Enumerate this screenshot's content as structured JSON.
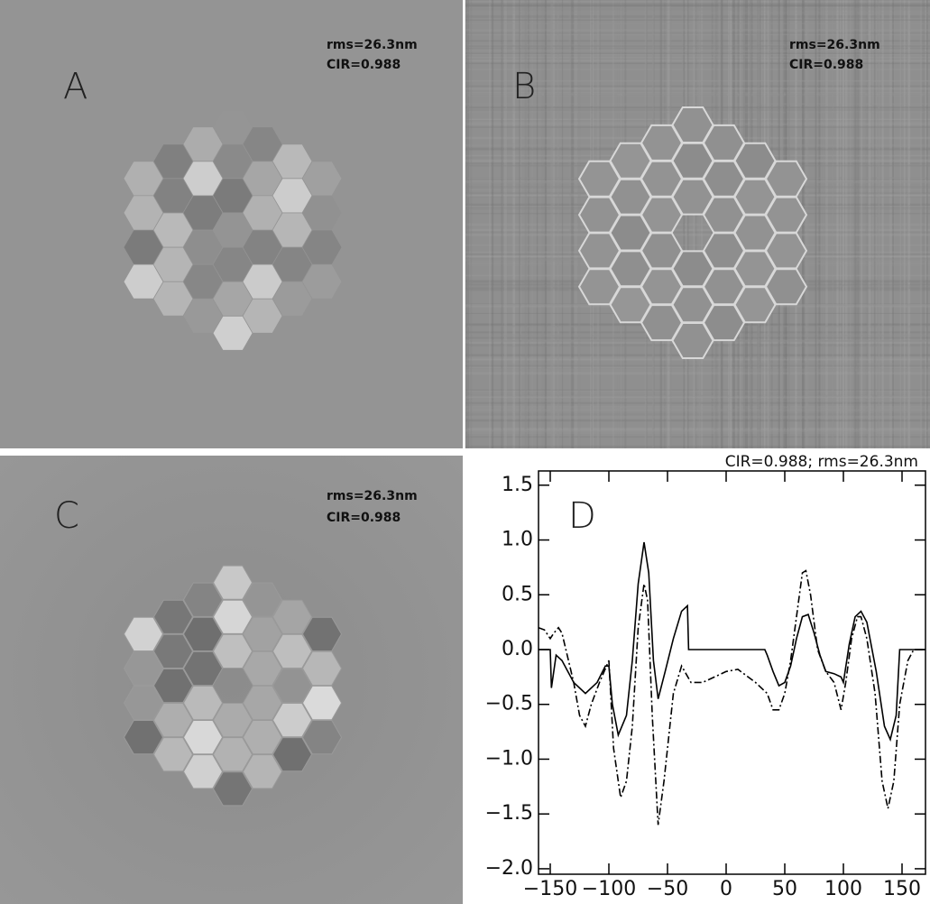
{
  "panels": [
    {
      "label": "A",
      "rms": "rms=26.3nm",
      "cir": "CIR=0.988"
    },
    {
      "label": "B",
      "rms": "rms=26.3nm",
      "cir": "CIR=0.988"
    },
    {
      "label": "C",
      "rms": "rms=26.3nm",
      "cir": "CIR=0.988"
    }
  ],
  "chart_data": {
    "type": "line",
    "title": "CIR=0.988; rms=26.3nm",
    "annotation": "D",
    "xlim": [
      -160,
      170
    ],
    "ylim": [
      -2.05,
      1.63
    ],
    "xticks": [
      {
        "value": -150,
        "label": "−150"
      },
      {
        "value": -100,
        "label": "−100"
      },
      {
        "value": -50,
        "label": "−50"
      },
      0,
      50,
      100,
      150
    ],
    "yticks": [
      1.5,
      {
        "value": 1.0,
        "label": "1.0"
      },
      0.5,
      {
        "value": 0.0,
        "label": "0.0"
      },
      {
        "value": -0.5,
        "label": "−0.5"
      },
      {
        "value": -1.0,
        "label": "−1.0"
      },
      {
        "value": -1.5,
        "label": "−1.5"
      },
      {
        "value": -2.0,
        "label": "−2.0"
      }
    ],
    "series": [
      {
        "color": "#000000",
        "dash": "solid",
        "x": [
          -160,
          -150,
          -149,
          -145,
          -140,
          -130,
          -120,
          -110,
          -103,
          -100,
          -97,
          -92,
          -85,
          -80,
          -75,
          -70,
          -66,
          -62,
          -58,
          -52,
          -45,
          -38,
          -33,
          -32,
          0,
          33,
          35,
          40,
          45,
          50,
          55,
          60,
          65,
          70,
          75,
          80,
          85,
          92,
          98,
          100,
          105,
          110,
          115,
          120,
          128,
          135,
          140,
          145,
          148,
          170
        ],
        "values": [
          0,
          0,
          -0.35,
          -0.05,
          -0.1,
          -0.3,
          -0.4,
          -0.3,
          -0.15,
          -0.15,
          -0.5,
          -0.78,
          -0.6,
          -0.1,
          0.6,
          0.98,
          0.7,
          -0.1,
          -0.45,
          -0.2,
          0.1,
          0.35,
          0.4,
          0,
          0,
          0,
          -0.05,
          -0.2,
          -0.33,
          -0.3,
          -0.15,
          0.1,
          0.3,
          0.32,
          0.15,
          -0.05,
          -0.2,
          -0.22,
          -0.25,
          -0.3,
          0.05,
          0.3,
          0.35,
          0.25,
          -0.2,
          -0.7,
          -0.82,
          -0.6,
          0,
          0
        ]
      },
      {
        "color": "#000000",
        "dash": "dashdot",
        "x": [
          -160,
          -155,
          -150,
          -147,
          -143,
          -140,
          -130,
          -125,
          -120,
          -115,
          -108,
          -100,
          -96,
          -90,
          -85,
          -80,
          -75,
          -70,
          -67,
          -63,
          -58,
          -53,
          -45,
          -38,
          -30,
          -20,
          -10,
          0,
          10,
          15,
          25,
          35,
          40,
          45,
          50,
          55,
          60,
          65,
          68,
          72,
          78,
          85,
          92,
          98,
          102,
          107,
          112,
          115,
          120,
          127,
          133,
          138,
          143,
          148,
          155,
          160,
          170
        ],
        "values": [
          0.2,
          0.18,
          0.1,
          0.15,
          0.2,
          0.15,
          -0.3,
          -0.6,
          -0.7,
          -0.5,
          -0.3,
          -0.1,
          -0.9,
          -1.35,
          -1.2,
          -0.7,
          0.2,
          0.6,
          0.45,
          -0.6,
          -1.6,
          -1.2,
          -0.4,
          -0.15,
          -0.3,
          -0.3,
          -0.25,
          -0.2,
          -0.18,
          -0.22,
          -0.3,
          -0.4,
          -0.55,
          -0.55,
          -0.4,
          -0.1,
          0.3,
          0.7,
          0.72,
          0.5,
          0,
          -0.2,
          -0.3,
          -0.55,
          -0.3,
          0.1,
          0.3,
          0.3,
          0.1,
          -0.4,
          -1.2,
          -1.45,
          -1.2,
          -0.5,
          -0.1,
          0,
          0
        ]
      }
    ]
  }
}
